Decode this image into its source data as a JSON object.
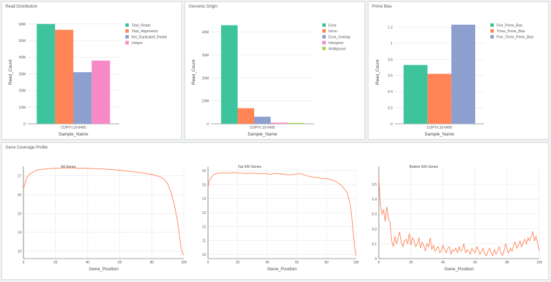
{
  "panels": {
    "read_distribution": "Read Distribution",
    "genomic_origin": "Genomic Origin",
    "prime_bias": "Prime Bias",
    "gene_coverage": "Gene Coverage Profile"
  },
  "chart_data": [
    {
      "type": "bar",
      "title": "",
      "categories": [
        "COPY-L19-6495"
      ],
      "series": [
        {
          "name": "Total_Reads",
          "color": "#3dc49d",
          "values": [
            60000000
          ]
        },
        {
          "name": "Total_Alignments",
          "color": "#ff8456",
          "values": [
            56500000
          ]
        },
        {
          "name": "Not_Duplicated_Reads",
          "color": "#8c9fcf",
          "values": [
            31000000
          ]
        },
        {
          "name": "Unique",
          "color": "#f68ac6",
          "values": [
            38000000
          ]
        }
      ],
      "xlabel": "Sample_Name",
      "ylabel": "Read_Count",
      "ylim": [
        0,
        62000000
      ],
      "yticks": [
        0,
        10000000,
        20000000,
        30000000,
        40000000,
        50000000,
        60000000
      ],
      "ytick_labels": [
        "0",
        "10M",
        "20M",
        "30M",
        "40M",
        "50M",
        "60M"
      ],
      "grid": true,
      "legend": "right"
    },
    {
      "type": "bar",
      "title": "",
      "categories": [
        "COPY-L19-6495"
      ],
      "series": [
        {
          "name": "Exon",
          "color": "#3dc49d",
          "values": [
            43000000
          ]
        },
        {
          "name": "Intron",
          "color": "#ff8456",
          "values": [
            6800000
          ]
        },
        {
          "name": "Exon_Overlap",
          "color": "#8c9fcf",
          "values": [
            3100000
          ]
        },
        {
          "name": "Intergenic",
          "color": "#f68ac6",
          "values": [
            500000
          ]
        },
        {
          "name": "Ambiguous",
          "color": "#a6d854",
          "values": [
            400000
          ]
        }
      ],
      "xlabel": "Sample_Name",
      "ylabel": "Read_Count",
      "ylim": [
        0,
        45000000
      ],
      "yticks": [
        0,
        10000000,
        20000000,
        30000000,
        40000000
      ],
      "ytick_labels": [
        "0",
        "10M",
        "20M",
        "30M",
        "40M"
      ],
      "grid": true,
      "legend": "right"
    },
    {
      "type": "bar",
      "title": "",
      "categories": [
        "COPY-L19-6495"
      ],
      "series": [
        {
          "name": "Five_Prime_Bias",
          "color": "#3dc49d",
          "values": [
            0.73
          ]
        },
        {
          "name": "Three_Prime_Bias",
          "color": "#ff8456",
          "values": [
            0.62
          ]
        },
        {
          "name": "Five_Three_Prime_Bias",
          "color": "#8c9fcf",
          "values": [
            1.23
          ]
        }
      ],
      "xlabel": "Sample_Name",
      "ylabel": "Read_Count",
      "ylim": [
        0,
        1.28
      ],
      "yticks": [
        0,
        0.2,
        0.4,
        0.6,
        0.8,
        1,
        1.2
      ],
      "ytick_labels": [
        "0",
        "0.2",
        "0.4",
        "0.6",
        "0.8",
        "1",
        "1.2"
      ],
      "grid": true,
      "legend": "right"
    },
    {
      "type": "line",
      "title": "All Genes",
      "xlabel": "Gene_Position",
      "ylabel": "",
      "xlim": [
        0,
        100
      ],
      "ylim": [
        12.6,
        17.5
      ],
      "xticks": [
        0,
        20,
        40,
        60,
        80,
        100
      ],
      "yticks": [
        13,
        14,
        15,
        16,
        17
      ],
      "color": "#ff7f50",
      "x": [
        0,
        2,
        4,
        6,
        8,
        10,
        15,
        20,
        25,
        30,
        35,
        40,
        45,
        50,
        55,
        60,
        65,
        70,
        75,
        80,
        85,
        88,
        90,
        92,
        94,
        96,
        97,
        98,
        99,
        100
      ],
      "y": [
        16.3,
        16.9,
        17.1,
        17.2,
        17.3,
        17.33,
        17.38,
        17.4,
        17.42,
        17.42,
        17.41,
        17.4,
        17.38,
        17.36,
        17.33,
        17.3,
        17.25,
        17.2,
        17.14,
        17.08,
        16.95,
        16.8,
        16.55,
        16.1,
        15.5,
        14.6,
        14.0,
        13.3,
        12.9,
        12.8
      ],
      "grid": true
    },
    {
      "type": "line",
      "title": "Top 500 Genes",
      "xlabel": "Gene_Position",
      "ylabel": "",
      "xlim": [
        0,
        100
      ],
      "ylim": [
        9.7,
        16.3
      ],
      "xticks": [
        0,
        20,
        40,
        60,
        80,
        100
      ],
      "yticks": [
        10,
        11,
        12,
        13,
        14,
        15,
        16
      ],
      "color": "#ff7f50",
      "x": [
        0,
        1,
        2,
        3,
        4,
        6,
        8,
        10,
        13,
        16,
        20,
        25,
        30,
        35,
        38,
        42,
        46,
        50,
        54,
        58,
        62,
        64,
        66,
        68,
        70,
        72,
        75,
        78,
        80,
        83,
        86,
        88,
        90,
        92,
        94,
        96,
        97,
        98,
        99,
        100
      ],
      "y": [
        14.8,
        15.3,
        15.5,
        15.6,
        15.72,
        15.8,
        15.82,
        15.85,
        15.82,
        15.86,
        15.84,
        15.8,
        15.82,
        15.78,
        15.8,
        15.74,
        15.8,
        15.76,
        15.7,
        15.72,
        15.8,
        15.74,
        15.66,
        15.6,
        15.55,
        15.52,
        15.48,
        15.42,
        15.45,
        15.35,
        15.25,
        15.1,
        14.95,
        14.7,
        14.4,
        13.6,
        12.8,
        11.6,
        10.5,
        9.9
      ],
      "grid": true
    },
    {
      "type": "line",
      "title": "Bottom 500 Genes",
      "xlabel": "Gene_Position",
      "ylabel": "",
      "xlim": [
        0,
        100
      ],
      "ylim": [
        0,
        0.62
      ],
      "xticks": [
        0,
        20,
        40,
        60,
        80,
        100
      ],
      "yticks": [
        0,
        0.1,
        0.2,
        0.3,
        0.4,
        0.5
      ],
      "ytick_labels": [
        "0",
        "0.1",
        "0.2",
        "0.3",
        "0.4",
        "0.5"
      ],
      "color": "#ff7f50",
      "x": [
        0,
        1,
        2,
        3,
        4,
        5,
        6,
        7,
        8,
        9,
        10,
        11,
        12,
        13,
        14,
        15,
        16,
        17,
        18,
        19,
        20,
        21,
        22,
        23,
        24,
        25,
        26,
        27,
        28,
        29,
        30,
        31,
        32,
        33,
        34,
        35,
        36,
        37,
        38,
        39,
        40,
        41,
        42,
        43,
        44,
        45,
        46,
        47,
        48,
        49,
        50,
        51,
        52,
        53,
        54,
        55,
        56,
        57,
        58,
        59,
        60,
        61,
        62,
        63,
        64,
        65,
        66,
        67,
        68,
        69,
        70,
        71,
        72,
        73,
        74,
        75,
        76,
        77,
        78,
        79,
        80,
        81,
        82,
        83,
        84,
        85,
        86,
        87,
        88,
        89,
        90,
        91,
        92,
        93,
        94,
        95,
        96,
        97,
        98,
        99,
        100
      ],
      "y": [
        0.55,
        0.36,
        0.3,
        0.33,
        0.25,
        0.35,
        0.27,
        0.24,
        0.12,
        0.08,
        0.15,
        0.1,
        0.14,
        0.18,
        0.11,
        0.08,
        0.12,
        0.13,
        0.1,
        0.17,
        0.09,
        0.14,
        0.12,
        0.08,
        0.1,
        0.14,
        0.07,
        0.11,
        0.09,
        0.05,
        0.1,
        0.08,
        0.14,
        0.06,
        0.09,
        0.05,
        0.07,
        0.08,
        0.04,
        0.05,
        0.09,
        0.06,
        0.04,
        0.07,
        0.08,
        0.03,
        0.06,
        0.05,
        0.07,
        0.04,
        0.08,
        0.05,
        0.06,
        0.1,
        0.04,
        0.06,
        0.05,
        0.03,
        0.07,
        0.05,
        0.04,
        0.08,
        0.06,
        0.03,
        0.05,
        0.07,
        0.03,
        0.02,
        0.05,
        0.07,
        0.04,
        0.02,
        0.06,
        0.03,
        0.05,
        0.08,
        0.04,
        0.02,
        0.05,
        0.1,
        0.06,
        0.04,
        0.07,
        0.05,
        0.09,
        0.11,
        0.07,
        0.09,
        0.12,
        0.08,
        0.11,
        0.13,
        0.1,
        0.14,
        0.12,
        0.15,
        0.18,
        0.12,
        0.15,
        0.1,
        0.05
      ],
      "grid": true
    }
  ]
}
